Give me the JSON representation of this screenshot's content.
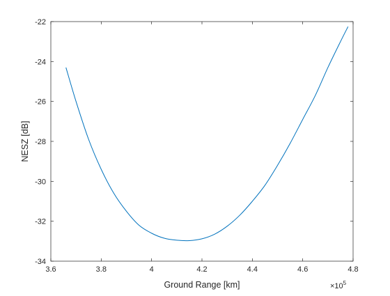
{
  "chart_data": {
    "type": "line",
    "xlabel": "Ground Range [km]",
    "ylabel": "NESZ [dB]",
    "x_exponent_label": "×10",
    "x_exponent_power": "5",
    "xlim": [
      3.6,
      4.8
    ],
    "ylim": [
      -34,
      -22
    ],
    "xticks": [
      3.6,
      3.8,
      4.0,
      4.2,
      4.4,
      4.6,
      4.8
    ],
    "xtick_labels": [
      "3.6",
      "3.8",
      "4",
      "4.2",
      "4.4",
      "4.6",
      "4.8"
    ],
    "yticks": [
      -34,
      -32,
      -30,
      -28,
      -26,
      -24,
      -22
    ],
    "ytick_labels": [
      "-34",
      "-32",
      "-30",
      "-28",
      "-26",
      "-24",
      "-22"
    ],
    "grid": false,
    "box": true,
    "series": [
      {
        "color": "#0072bd",
        "x": [
          3.66,
          3.7,
          3.75,
          3.8,
          3.85,
          3.9,
          3.95,
          4.0,
          4.05,
          4.1,
          4.15,
          4.2,
          4.25,
          4.3,
          4.35,
          4.4,
          4.45,
          4.5,
          4.55,
          4.6,
          4.65,
          4.7,
          4.75,
          4.78
        ],
        "y": [
          -24.3,
          -26.0,
          -27.9,
          -29.4,
          -30.6,
          -31.5,
          -32.2,
          -32.6,
          -32.85,
          -32.95,
          -32.97,
          -32.88,
          -32.65,
          -32.25,
          -31.7,
          -31.0,
          -30.2,
          -29.2,
          -28.1,
          -26.9,
          -25.7,
          -24.3,
          -23.0,
          -22.25
        ]
      }
    ]
  }
}
